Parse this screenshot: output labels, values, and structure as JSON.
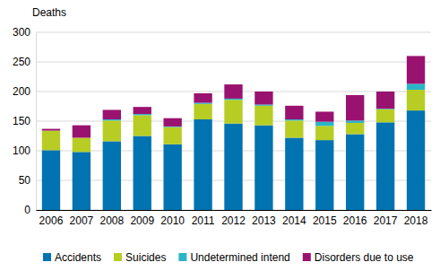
{
  "chart_data": {
    "type": "bar",
    "stacked": true,
    "grid": true,
    "legend": "bottom",
    "y_label": "Deaths",
    "categories": [
      "2006",
      "2007",
      "2008",
      "2009",
      "2010",
      "2011",
      "2012",
      "2013",
      "2014",
      "2015",
      "2016",
      "2017",
      "2018"
    ],
    "series": [
      {
        "name": "Accidents",
        "color": "#0073b0",
        "values": [
          101,
          98,
          116,
          125,
          111,
          153,
          146,
          143,
          122,
          118,
          128,
          148,
          168
        ]
      },
      {
        "name": "Suicides",
        "color": "#b7cd23",
        "values": [
          33,
          24,
          35,
          35,
          29,
          26,
          40,
          33,
          29,
          24,
          19,
          22,
          35
        ]
      },
      {
        "name": "Undetermined intend",
        "color": "#2ab6c8",
        "values": [
          0,
          0,
          2,
          2,
          1,
          2,
          2,
          2,
          2,
          7,
          4,
          1,
          10
        ]
      },
      {
        "name": "Disorders due to use",
        "color": "#9a1270",
        "values": [
          3,
          21,
          16,
          12,
          14,
          16,
          24,
          22,
          23,
          17,
          43,
          29,
          47
        ]
      }
    ],
    "ylim": [
      0,
      300
    ],
    "yticks": [
      0,
      50,
      100,
      150,
      200,
      250,
      300
    ]
  }
}
